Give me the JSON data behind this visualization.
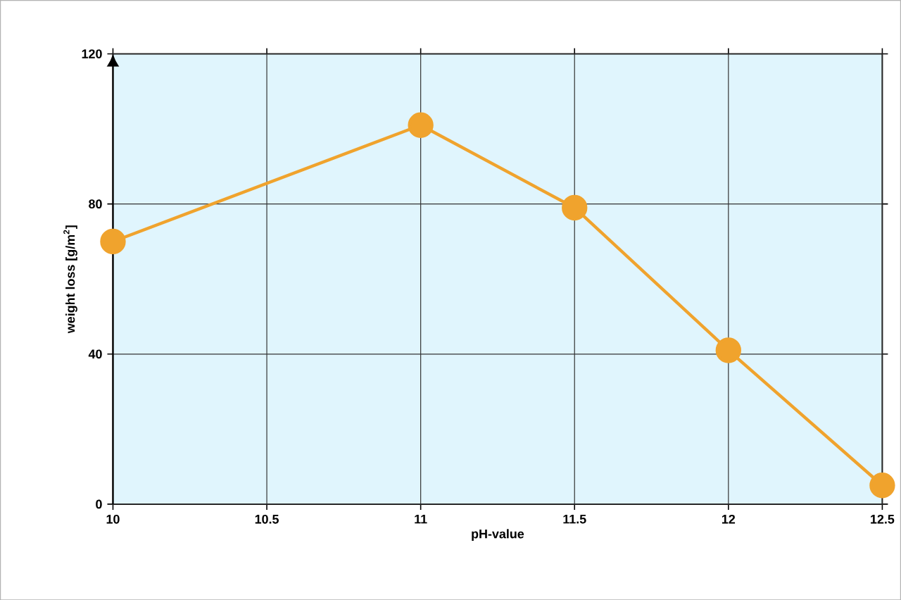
{
  "chart_data": {
    "type": "line",
    "xlabel": "pH-value",
    "ylabel": "weight loss [g/m$^{2}$]",
    "x": [
      10,
      11,
      11.5,
      12,
      12.5
    ],
    "series": [
      {
        "color": "#f0a32d",
        "values": [
          70,
          101,
          79,
          41,
          5
        ]
      }
    ],
    "xlim": [
      10,
      12.5
    ],
    "xticks": [
      10,
      10.5,
      11,
      11.5,
      12,
      12.5
    ],
    "ylim": [
      0,
      120
    ],
    "yticks": [
      0,
      40,
      80,
      120
    ],
    "grid": true,
    "marker": "circle",
    "line_style": "solid"
  }
}
